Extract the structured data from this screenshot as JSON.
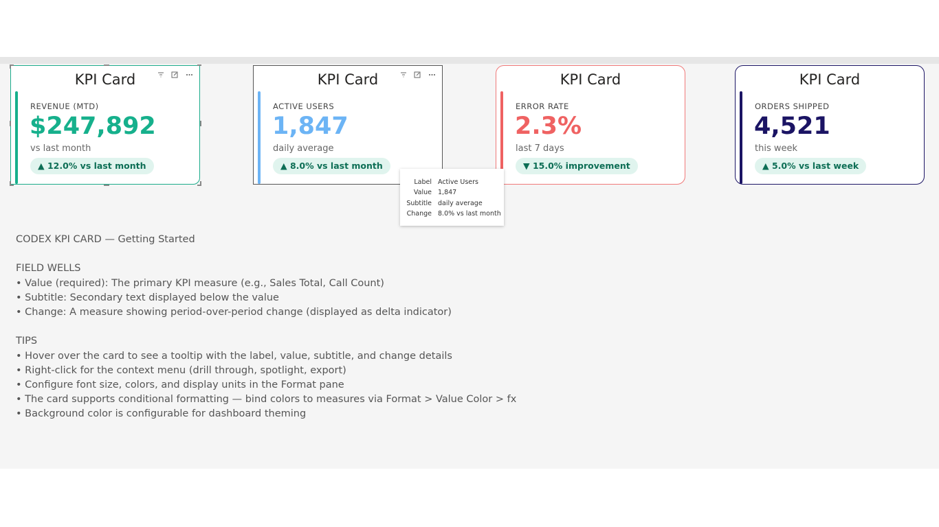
{
  "cards": [
    {
      "title": "KPI Card",
      "label": "REVENUE (MTD)",
      "value": "$247,892",
      "subtitle": "vs last month",
      "change": "▲ 12.0% vs last month"
    },
    {
      "title": "KPI Card",
      "label": "ACTIVE USERS",
      "value": "1,847",
      "subtitle": "daily average",
      "change": "▲ 8.0% vs last month"
    },
    {
      "title": "KPI Card",
      "label": "ERROR RATE",
      "value": "2.3%",
      "subtitle": "last 7 days",
      "change": "▼ 15.0% improvement"
    },
    {
      "title": "KPI Card",
      "label": "ORDERS SHIPPED",
      "value": "4,521",
      "subtitle": "this week",
      "change": "▲ 5.0% vs last week"
    }
  ],
  "tooltip": {
    "rows": [
      {
        "key": "Label",
        "value": "Active Users"
      },
      {
        "key": "Value",
        "value": "1,847"
      },
      {
        "key": "Subtitle",
        "value": "daily average"
      },
      {
        "key": "Change",
        "value": "8.0% vs last month"
      }
    ]
  },
  "notes": {
    "heading": "CODEX KPI CARD — Getting Started",
    "sections": [
      {
        "title": "FIELD WELLS",
        "items": [
          "• Value (required): The primary KPI measure (e.g., Sales Total, Call Count)",
          "• Subtitle: Secondary text displayed below the value",
          "• Change: A measure showing period-over-period change (displayed as delta indicator)"
        ]
      },
      {
        "title": "TIPS",
        "items": [
          "• Hover over the card to see a tooltip with the label, value, subtitle, and change details",
          "• Right-click for the context menu (drill through, spotlight, export)",
          "• Configure font size, colors, and display units in the Format pane",
          "• The card supports conditional formatting — bind colors to measures via Format > Value Color > fx",
          "• Background color is configurable for dashboard theming"
        ]
      }
    ]
  }
}
